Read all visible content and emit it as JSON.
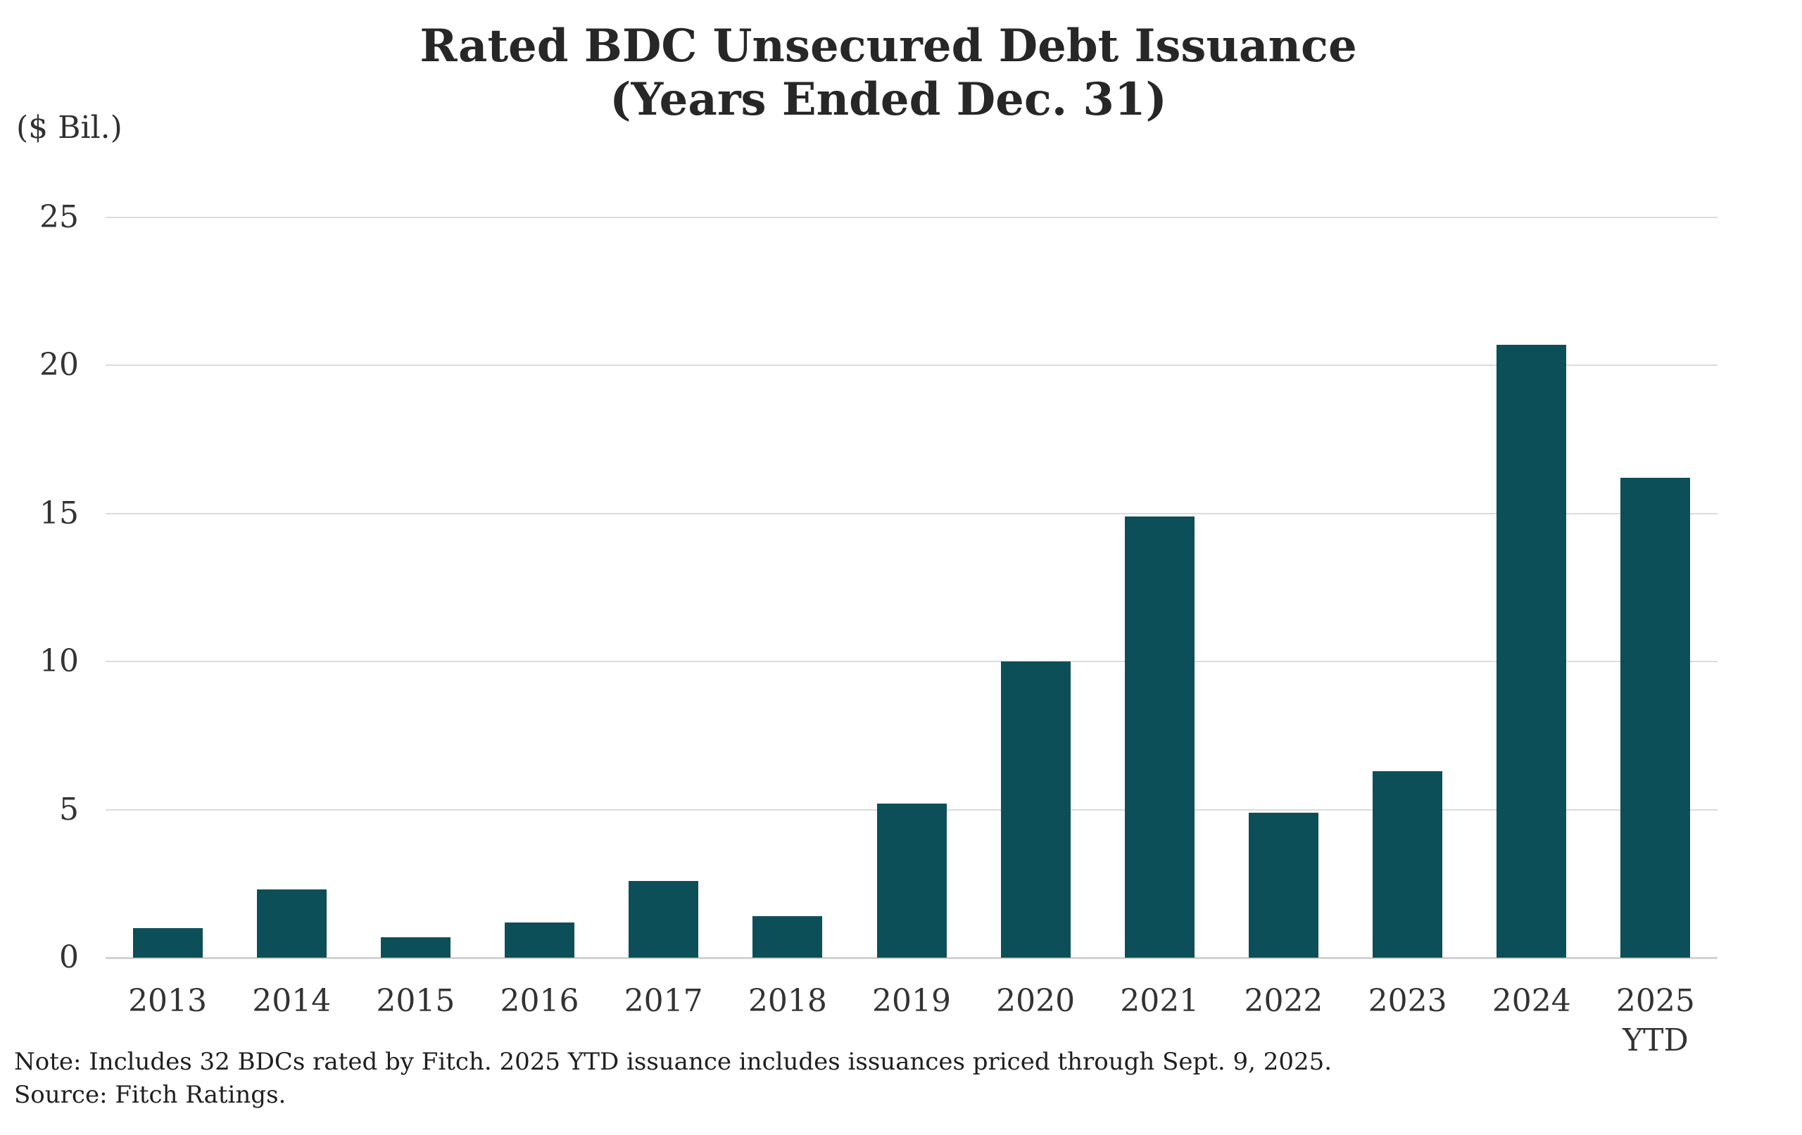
{
  "title": {
    "line1": "Rated BDC Unsecured Debt Issuance",
    "line2": "(Years Ended Dec. 31)"
  },
  "y_axis_unit_label": "($ Bil.)",
  "note": {
    "line1": "Note: Includes 32 BDCs rated by Fitch. 2025 YTD issuance includes issuances priced through Sept. 9, 2025.",
    "line2": "Source: Fitch Ratings."
  },
  "colors": {
    "bar": "#0d4f58",
    "gridline": "#dcdcdc",
    "baseline": "#d2d2d2",
    "title_text": "#272727",
    "tick_text": "#333333",
    "note_text": "#1f1f1f"
  },
  "chart_data": {
    "type": "bar",
    "title": "Rated BDC Unsecured Debt Issuance (Years Ended Dec. 31)",
    "xlabel": "",
    "ylabel": "($ Bil.)",
    "categories": [
      "2013",
      "2014",
      "2015",
      "2016",
      "2017",
      "2018",
      "2019",
      "2020",
      "2021",
      "2022",
      "2023",
      "2024",
      "2025 YTD"
    ],
    "values": [
      1.0,
      2.3,
      0.7,
      1.2,
      2.6,
      1.4,
      5.2,
      10.0,
      14.9,
      4.9,
      6.3,
      20.7,
      16.2
    ],
    "ylim": [
      0,
      25
    ],
    "yticks": [
      0,
      5,
      10,
      15,
      20,
      25
    ],
    "grid": true,
    "legend": false,
    "bar_color": "#0d4f58"
  }
}
